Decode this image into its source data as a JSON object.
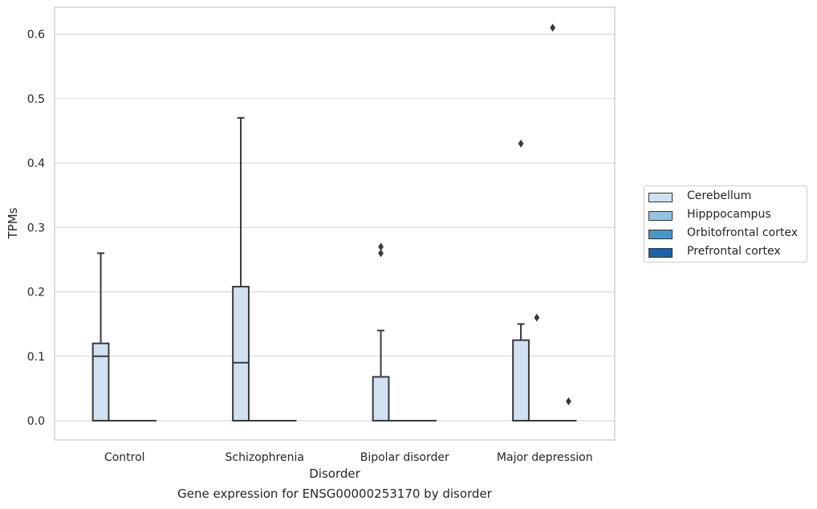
{
  "chart_data": {
    "type": "box",
    "caption": "Gene expression for ENSG00000253170 by disorder",
    "xlabel": "Disorder",
    "ylabel": "TPMs",
    "ylim": [
      -0.03,
      0.64
    ],
    "yticks": [
      "0.0",
      "0.1",
      "0.2",
      "0.3",
      "0.4",
      "0.5",
      "0.6"
    ],
    "categories": [
      "Control",
      "Schizophrenia",
      "Bipolar disorder",
      "Major depression"
    ],
    "grid": true,
    "legend_position": "right",
    "series": [
      {
        "name": "Cerebellum",
        "color": "#d0e1f2",
        "boxes": [
          {
            "q1": 0.0,
            "median": 0.1,
            "q3": 0.12,
            "whisker_low": 0.0,
            "whisker_high": 0.26,
            "outliers": []
          },
          {
            "q1": 0.0,
            "median": 0.09,
            "q3": 0.208,
            "whisker_low": 0.0,
            "whisker_high": 0.47,
            "outliers": []
          },
          {
            "q1": 0.0,
            "median": 0.0,
            "q3": 0.068,
            "whisker_low": 0.0,
            "whisker_high": 0.14,
            "outliers": [
              0.26,
              0.27
            ]
          },
          {
            "q1": 0.0,
            "median": 0.0,
            "q3": 0.125,
            "whisker_low": 0.0,
            "whisker_high": 0.15,
            "outliers": [
              0.43
            ]
          }
        ]
      },
      {
        "name": "Hipppocampus",
        "color": "#94c4df",
        "boxes": [
          {
            "q1": 0.0,
            "median": 0.0,
            "q3": 0.0,
            "whisker_low": 0.0,
            "whisker_high": 0.0,
            "outliers": []
          },
          {
            "q1": 0.0,
            "median": 0.0,
            "q3": 0.0,
            "whisker_low": 0.0,
            "whisker_high": 0.0,
            "outliers": []
          },
          {
            "q1": 0.0,
            "median": 0.0,
            "q3": 0.0,
            "whisker_low": 0.0,
            "whisker_high": 0.0,
            "outliers": []
          },
          {
            "q1": 0.0,
            "median": 0.0,
            "q3": 0.0,
            "whisker_low": 0.0,
            "whisker_high": 0.0,
            "outliers": [
              0.16
            ]
          }
        ]
      },
      {
        "name": "Orbitofrontal cortex",
        "color": "#4a98c9",
        "boxes": [
          {
            "q1": 0.0,
            "median": 0.0,
            "q3": 0.0,
            "whisker_low": 0.0,
            "whisker_high": 0.0,
            "outliers": []
          },
          {
            "q1": 0.0,
            "median": 0.0,
            "q3": 0.0,
            "whisker_low": 0.0,
            "whisker_high": 0.0,
            "outliers": []
          },
          {
            "q1": 0.0,
            "median": 0.0,
            "q3": 0.0,
            "whisker_low": 0.0,
            "whisker_high": 0.0,
            "outliers": []
          },
          {
            "q1": 0.0,
            "median": 0.0,
            "q3": 0.0,
            "whisker_low": 0.0,
            "whisker_high": 0.0,
            "outliers": [
              0.61
            ]
          }
        ]
      },
      {
        "name": "Prefrontal cortex",
        "color": "#1764ab",
        "boxes": [
          {
            "q1": 0.0,
            "median": 0.0,
            "q3": 0.0,
            "whisker_low": 0.0,
            "whisker_high": 0.0,
            "outliers": []
          },
          {
            "q1": 0.0,
            "median": 0.0,
            "q3": 0.0,
            "whisker_low": 0.0,
            "whisker_high": 0.0,
            "outliers": []
          },
          {
            "q1": 0.0,
            "median": 0.0,
            "q3": 0.0,
            "whisker_low": 0.0,
            "whisker_high": 0.0,
            "outliers": []
          },
          {
            "q1": 0.0,
            "median": 0.0,
            "q3": 0.0,
            "whisker_low": 0.0,
            "whisker_high": 0.0,
            "outliers": [
              0.03
            ]
          }
        ]
      }
    ]
  }
}
